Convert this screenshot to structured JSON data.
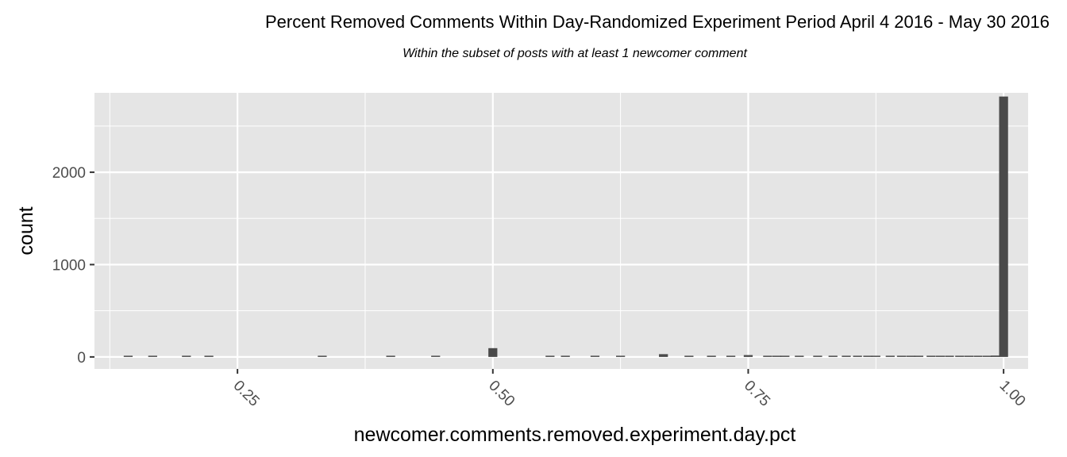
{
  "chart_data": {
    "type": "bar",
    "title": "Percent Removed Comments Within Day-Randomized Experiment Period April 4 2016 - May 30 2016",
    "subtitle": "Within the subset of posts with at least 1 newcomer comment",
    "xlabel": "newcomer.comments.removed.experiment.day.pct",
    "ylabel": "count",
    "xlim": [
      0.11,
      1.024
    ],
    "ylim": [
      -130,
      2860
    ],
    "x_ticks": [
      0.25,
      0.5,
      0.75,
      1.0
    ],
    "x_tick_labels": [
      "0.25",
      "0.50",
      "0.75",
      "1.00"
    ],
    "y_ticks": [
      0,
      1000,
      2000
    ],
    "y_tick_labels": [
      "0",
      "1000",
      "2000"
    ],
    "bin_width": 0.00875,
    "bars": [
      {
        "x": 0.143,
        "count": 2
      },
      {
        "x": 0.167,
        "count": 2
      },
      {
        "x": 0.2,
        "count": 2
      },
      {
        "x": 0.222,
        "count": 2
      },
      {
        "x": 0.333,
        "count": 5
      },
      {
        "x": 0.4,
        "count": 2
      },
      {
        "x": 0.444,
        "count": 2
      },
      {
        "x": 0.5,
        "count": 95
      },
      {
        "x": 0.556,
        "count": 2
      },
      {
        "x": 0.571,
        "count": 2
      },
      {
        "x": 0.6,
        "count": 8
      },
      {
        "x": 0.625,
        "count": 2
      },
      {
        "x": 0.667,
        "count": 30
      },
      {
        "x": 0.692,
        "count": 3
      },
      {
        "x": 0.714,
        "count": 5
      },
      {
        "x": 0.733,
        "count": 3
      },
      {
        "x": 0.75,
        "count": 20
      },
      {
        "x": 0.769,
        "count": 4
      },
      {
        "x": 0.778,
        "count": 5
      },
      {
        "x": 0.786,
        "count": 3
      },
      {
        "x": 0.8,
        "count": 12
      },
      {
        "x": 0.818,
        "count": 4
      },
      {
        "x": 0.833,
        "count": 6
      },
      {
        "x": 0.846,
        "count": 3
      },
      {
        "x": 0.857,
        "count": 4
      },
      {
        "x": 0.867,
        "count": 3
      },
      {
        "x": 0.875,
        "count": 4
      },
      {
        "x": 0.889,
        "count": 3
      },
      {
        "x": 0.9,
        "count": 3
      },
      {
        "x": 0.909,
        "count": 3
      },
      {
        "x": 0.917,
        "count": 3
      },
      {
        "x": 0.929,
        "count": 3
      },
      {
        "x": 0.938,
        "count": 3
      },
      {
        "x": 0.947,
        "count": 3
      },
      {
        "x": 0.957,
        "count": 4
      },
      {
        "x": 0.966,
        "count": 8
      },
      {
        "x": 0.975,
        "count": 10
      },
      {
        "x": 0.984,
        "count": 12
      },
      {
        "x": 0.992,
        "count": 15
      },
      {
        "x": 1.0,
        "count": 2820
      }
    ],
    "grid": true,
    "legend": "none",
    "colors": {
      "panel": "#e5e5e5",
      "grid": "#ffffff",
      "bar": "#4a4a4a",
      "tick": "#333333",
      "tick_text": "#4d4d4d"
    }
  }
}
